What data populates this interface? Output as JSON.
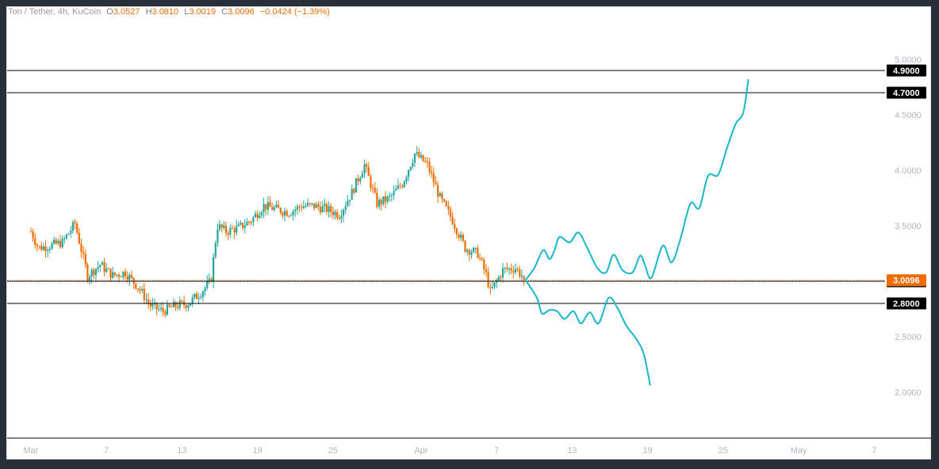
{
  "header": {
    "symbol": "Ton / Tether, 4h, KuCoin",
    "open_label": "O",
    "open": "3.0527",
    "high_label": "H",
    "high": "3.0810",
    "low_label": "L",
    "low": "3.0019",
    "close_label": "C",
    "close": "3.0096",
    "change": "−0.0424 (−1.39%)"
  },
  "colors": {
    "up": "#26a69a",
    "down": "#ef6c00",
    "projection": "#17b6c9",
    "price_tag": "#ef6c00",
    "level_tag": "#000000"
  },
  "chart_data": {
    "type": "candlestick",
    "title": "",
    "y_range": [
      1.6,
      5.3
    ],
    "y_ticks": [
      "5.0000",
      "4.5000",
      "4.0000",
      "3.5000",
      "3.0000",
      "2.5000",
      "2.0000"
    ],
    "x_ticks": [
      "Mar",
      "7",
      "13",
      "19",
      "25",
      "Apr",
      "7",
      "13",
      "19",
      "25",
      "May",
      "7"
    ],
    "price_anchors": [
      {
        "d": 0,
        "v": 3.45
      },
      {
        "d": 0.6,
        "v": 3.3
      },
      {
        "d": 1.5,
        "v": 3.32
      },
      {
        "d": 2.5,
        "v": 3.35
      },
      {
        "d": 3.5,
        "v": 3.52
      },
      {
        "d": 4.5,
        "v": 3.05
      },
      {
        "d": 5.5,
        "v": 3.15
      },
      {
        "d": 6.5,
        "v": 3.05
      },
      {
        "d": 7.5,
        "v": 3.08
      },
      {
        "d": 8.5,
        "v": 2.95
      },
      {
        "d": 9.5,
        "v": 2.78
      },
      {
        "d": 10.5,
        "v": 2.73
      },
      {
        "d": 11.5,
        "v": 2.78
      },
      {
        "d": 12.5,
        "v": 2.8
      },
      {
        "d": 13.5,
        "v": 2.9
      },
      {
        "d": 14.3,
        "v": 3.0
      },
      {
        "d": 14.8,
        "v": 3.5
      },
      {
        "d": 15.5,
        "v": 3.45
      },
      {
        "d": 16.5,
        "v": 3.48
      },
      {
        "d": 17.5,
        "v": 3.55
      },
      {
        "d": 18.5,
        "v": 3.68
      },
      {
        "d": 19.5,
        "v": 3.65
      },
      {
        "d": 20.5,
        "v": 3.62
      },
      {
        "d": 21.5,
        "v": 3.68
      },
      {
        "d": 22.5,
        "v": 3.68
      },
      {
        "d": 23.5,
        "v": 3.65
      },
      {
        "d": 24.5,
        "v": 3.6
      },
      {
        "d": 25.5,
        "v": 3.8
      },
      {
        "d": 26.5,
        "v": 4.05
      },
      {
        "d": 27.5,
        "v": 3.7
      },
      {
        "d": 28.5,
        "v": 3.75
      },
      {
        "d": 29.5,
        "v": 3.88
      },
      {
        "d": 30.5,
        "v": 4.15
      },
      {
        "d": 31.5,
        "v": 4.05
      },
      {
        "d": 32.5,
        "v": 3.75
      },
      {
        "d": 33.5,
        "v": 3.55
      },
      {
        "d": 34.5,
        "v": 3.3
      },
      {
        "d": 35.5,
        "v": 3.25
      },
      {
        "d": 36.2,
        "v": 3.05
      },
      {
        "d": 36.5,
        "v": 2.9
      },
      {
        "d": 37.5,
        "v": 3.1
      },
      {
        "d": 38.5,
        "v": 3.12
      },
      {
        "d": 39.3,
        "v": 3.0096
      }
    ],
    "projection_bullish": [
      {
        "d": 39.3,
        "v": 3.01
      },
      {
        "d": 40.0,
        "v": 3.12
      },
      {
        "d": 40.7,
        "v": 3.28
      },
      {
        "d": 41.2,
        "v": 3.2
      },
      {
        "d": 41.6,
        "v": 3.28
      },
      {
        "d": 42.0,
        "v": 3.4
      },
      {
        "d": 42.8,
        "v": 3.35
      },
      {
        "d": 43.5,
        "v": 3.44
      },
      {
        "d": 44.2,
        "v": 3.3
      },
      {
        "d": 45.0,
        "v": 3.12
      },
      {
        "d": 45.7,
        "v": 3.08
      },
      {
        "d": 46.3,
        "v": 3.24
      },
      {
        "d": 47.0,
        "v": 3.1
      },
      {
        "d": 47.8,
        "v": 3.08
      },
      {
        "d": 48.4,
        "v": 3.23
      },
      {
        "d": 48.8,
        "v": 3.14
      },
      {
        "d": 49.3,
        "v": 3.03
      },
      {
        "d": 50.2,
        "v": 3.32
      },
      {
        "d": 50.9,
        "v": 3.17
      },
      {
        "d": 51.6,
        "v": 3.38
      },
      {
        "d": 52.4,
        "v": 3.7
      },
      {
        "d": 53.1,
        "v": 3.66
      },
      {
        "d": 53.8,
        "v": 3.95
      },
      {
        "d": 54.6,
        "v": 3.96
      },
      {
        "d": 55.3,
        "v": 4.2
      },
      {
        "d": 56.0,
        "v": 4.42
      },
      {
        "d": 56.6,
        "v": 4.52
      },
      {
        "d": 57.0,
        "v": 4.82
      }
    ],
    "projection_bearish": [
      {
        "d": 39.3,
        "v": 3.01
      },
      {
        "d": 40.2,
        "v": 2.85
      },
      {
        "d": 40.6,
        "v": 2.71
      },
      {
        "d": 41.2,
        "v": 2.74
      },
      {
        "d": 41.8,
        "v": 2.73
      },
      {
        "d": 42.4,
        "v": 2.66
      },
      {
        "d": 43.1,
        "v": 2.73
      },
      {
        "d": 43.7,
        "v": 2.62
      },
      {
        "d": 44.4,
        "v": 2.72
      },
      {
        "d": 45.1,
        "v": 2.62
      },
      {
        "d": 45.9,
        "v": 2.85
      },
      {
        "d": 46.6,
        "v": 2.76
      },
      {
        "d": 47.3,
        "v": 2.6
      },
      {
        "d": 48.1,
        "v": 2.48
      },
      {
        "d": 48.7,
        "v": 2.34
      },
      {
        "d": 49.2,
        "v": 2.06
      }
    ],
    "levels": [
      {
        "value": 4.9,
        "label": "4.9000"
      },
      {
        "value": 4.7,
        "label": "4.7000"
      },
      {
        "value": 3.0,
        "label": "3.0000"
      },
      {
        "value": 2.8,
        "label": "2.8000"
      }
    ],
    "last_price": {
      "value": 3.0096,
      "label": "3.0096"
    },
    "grid": false
  }
}
